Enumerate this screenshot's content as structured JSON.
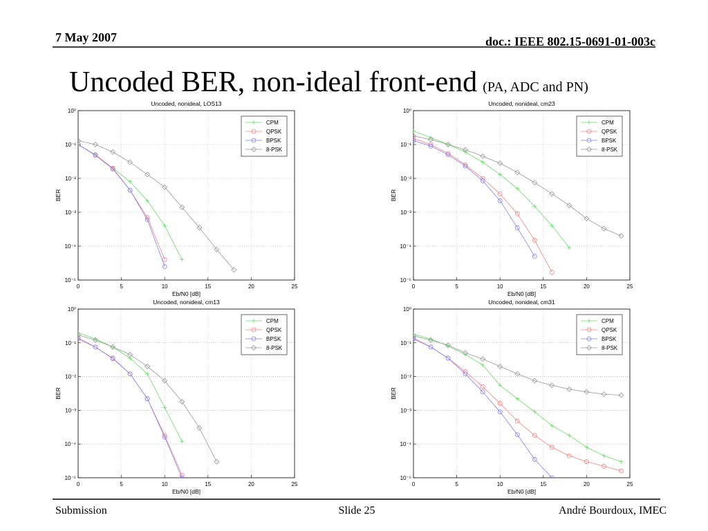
{
  "header": {
    "date": "7 May 2007",
    "doc": "doc.: IEEE 802.15-0691-01-003c"
  },
  "title": "Uncoded BER, non-ideal front-end",
  "subtitle": "(PA, ADC and PN)",
  "footer": {
    "left": "Submission",
    "center": "Slide 25",
    "right": "André Bourdoux, IMEC"
  },
  "chart_data": [
    {
      "type": "line",
      "title": "Uncoded, nonideal, LOS13",
      "xlabel": "Eb/N0 [dB]",
      "ylabel": "BER",
      "x": [
        0,
        2,
        4,
        6,
        8,
        10,
        12,
        14,
        16,
        18,
        20,
        22,
        24
      ],
      "series": [
        {
          "name": "CPM",
          "color": "#66dd66",
          "values": [
            0.1,
            0.05,
            0.02,
            0.008,
            0.0022,
            0.0004,
            4e-05,
            null,
            null,
            null,
            null,
            null,
            null
          ]
        },
        {
          "name": "QPSK",
          "color": "#ff7f7f",
          "values": [
            0.1,
            0.05,
            0.02,
            0.0045,
            0.0007,
            4e-05,
            null,
            null,
            null,
            null,
            null,
            null,
            null
          ]
        },
        {
          "name": "BPSK",
          "color": "#7f7fff",
          "values": [
            0.1,
            0.048,
            0.019,
            0.0045,
            0.0006,
            2.5e-05,
            null,
            null,
            null,
            null,
            null,
            null,
            null
          ]
        },
        {
          "name": "8-PSK",
          "color": "#999999",
          "values": [
            0.13,
            0.1,
            0.06,
            0.03,
            0.013,
            0.0055,
            0.0014,
            0.00035,
            8e-05,
            2e-05,
            null,
            null,
            null
          ]
        }
      ],
      "xlim": [
        0,
        25
      ],
      "xticks": [
        0,
        5,
        10,
        15,
        20,
        25
      ],
      "ylim": [
        1e-05,
        1
      ],
      "log_y": true,
      "grid": true,
      "legend": "upper right",
      "yticks": [
        {
          "value": 1e-05,
          "label": "10⁻⁵"
        },
        {
          "value": 0.0001,
          "label": "10⁻⁴"
        },
        {
          "value": 0.001,
          "label": "10⁻³"
        },
        {
          "value": 0.01,
          "label": "10⁻²"
        },
        {
          "value": 0.1,
          "label": "10⁻¹"
        },
        {
          "value": 1,
          "label": "10⁰"
        }
      ]
    },
    {
      "type": "line",
      "title": "Uncoded, nonideal, cm23",
      "xlabel": "Eb/N0 [dB]",
      "ylabel": "BER",
      "x": [
        0,
        2,
        4,
        6,
        8,
        10,
        12,
        14,
        16,
        18,
        20,
        22,
        24
      ],
      "series": [
        {
          "name": "CPM",
          "color": "#66dd66",
          "values": [
            0.25,
            0.16,
            0.1,
            0.06,
            0.03,
            0.013,
            0.005,
            0.0015,
            0.0004,
            9e-05,
            null,
            null,
            null
          ]
        },
        {
          "name": "QPSK",
          "color": "#ff7f7f",
          "values": [
            0.15,
            0.1,
            0.055,
            0.025,
            0.01,
            0.0035,
            0.0009,
            0.00015,
            1.7e-05,
            null,
            null,
            null,
            null
          ]
        },
        {
          "name": "BPSK",
          "color": "#7f7fff",
          "values": [
            0.13,
            0.09,
            0.05,
            0.023,
            0.0085,
            0.0022,
            0.00035,
            5e-05,
            null,
            null,
            null,
            null,
            null
          ]
        },
        {
          "name": "8-PSK",
          "color": "#999999",
          "values": [
            0.18,
            0.14,
            0.1,
            0.07,
            0.045,
            0.028,
            0.015,
            0.0075,
            0.0035,
            0.0016,
            0.00065,
            0.00033,
            0.0002
          ]
        }
      ],
      "xlim": [
        0,
        25
      ],
      "xticks": [
        0,
        5,
        10,
        15,
        20,
        25
      ],
      "ylim": [
        1e-05,
        1
      ],
      "log_y": true,
      "grid": true,
      "legend": "upper right",
      "yticks": [
        {
          "value": 1e-05,
          "label": "10⁻⁵"
        },
        {
          "value": 0.0001,
          "label": "10⁻⁴"
        },
        {
          "value": 0.001,
          "label": "10⁻³"
        },
        {
          "value": 0.01,
          "label": "10⁻²"
        },
        {
          "value": 0.1,
          "label": "10⁻¹"
        },
        {
          "value": 1,
          "label": "10⁰"
        }
      ]
    },
    {
      "type": "line",
      "title": "Uncoded, nonideal, cm13",
      "xlabel": "Eb/N0 [dB]",
      "ylabel": "BER",
      "x": [
        0,
        2,
        4,
        6,
        8,
        10,
        12,
        14,
        16,
        18,
        20,
        22,
        24
      ],
      "series": [
        {
          "name": "CPM",
          "color": "#66dd66",
          "values": [
            0.2,
            0.13,
            0.075,
            0.035,
            0.012,
            0.0012,
            0.00012,
            null,
            null,
            null,
            null,
            null,
            null
          ]
        },
        {
          "name": "QPSK",
          "color": "#ff7f7f",
          "values": [
            0.14,
            0.075,
            0.035,
            0.012,
            0.0022,
            0.00018,
            1.2e-05,
            null,
            null,
            null,
            null,
            null,
            null
          ]
        },
        {
          "name": "BPSK",
          "color": "#7f7fff",
          "values": [
            0.13,
            0.075,
            0.034,
            0.012,
            0.0022,
            0.00016,
            1e-05,
            null,
            null,
            null,
            null,
            null,
            null
          ]
        },
        {
          "name": "8-PSK",
          "color": "#999999",
          "values": [
            0.17,
            0.12,
            0.075,
            0.045,
            0.02,
            0.0075,
            0.0018,
            0.0003,
            3e-05,
            null,
            null,
            null,
            null
          ]
        }
      ],
      "xlim": [
        0,
        25
      ],
      "xticks": [
        0,
        5,
        10,
        15,
        20,
        25
      ],
      "ylim": [
        1e-05,
        1
      ],
      "log_y": true,
      "grid": true,
      "legend": "upper right",
      "yticks": [
        {
          "value": 1e-05,
          "label": "10⁻⁵"
        },
        {
          "value": 0.0001,
          "label": "10⁻⁴"
        },
        {
          "value": 0.001,
          "label": "10⁻³"
        },
        {
          "value": 0.01,
          "label": "10⁻²"
        },
        {
          "value": 0.1,
          "label": "10⁻¹"
        },
        {
          "value": 1,
          "label": "10⁰"
        }
      ]
    },
    {
      "type": "line",
      "title": "Uncoded, nonideal, cm31",
      "xlabel": "Eb/N0 [dB]",
      "ylabel": "BER",
      "x": [
        0,
        2,
        4,
        6,
        8,
        10,
        12,
        14,
        16,
        18,
        20,
        22,
        24
      ],
      "series": [
        {
          "name": "CPM",
          "color": "#66dd66",
          "values": [
            0.18,
            0.13,
            0.08,
            0.045,
            0.022,
            0.0055,
            0.0022,
            0.0009,
            0.00035,
            0.00018,
            8e-05,
            4.5e-05,
            3e-05
          ]
        },
        {
          "name": "QPSK",
          "color": "#ff7f7f",
          "values": [
            0.14,
            0.075,
            0.035,
            0.014,
            0.005,
            0.0016,
            0.00048,
            0.00018,
            8e-05,
            4.5e-05,
            3e-05,
            2.2e-05,
            1.6e-05
          ]
        },
        {
          "name": "BPSK",
          "color": "#7f7fff",
          "values": [
            0.13,
            0.075,
            0.035,
            0.012,
            0.0035,
            0.0009,
            0.00019,
            3.5e-05,
            1e-05,
            null,
            null,
            null,
            null
          ]
        },
        {
          "name": "8-PSK",
          "color": "#999999",
          "values": [
            0.16,
            0.12,
            0.085,
            0.05,
            0.033,
            0.02,
            0.012,
            0.0075,
            0.0055,
            0.0042,
            0.0035,
            0.003,
            0.0028
          ]
        }
      ],
      "xlim": [
        0,
        25
      ],
      "xticks": [
        0,
        5,
        10,
        15,
        20,
        25
      ],
      "ylim": [
        1e-05,
        1
      ],
      "log_y": true,
      "grid": true,
      "legend": "upper right",
      "yticks": [
        {
          "value": 1e-05,
          "label": "10⁻⁵"
        },
        {
          "value": 0.0001,
          "label": "10⁻⁴"
        },
        {
          "value": 0.001,
          "label": "10⁻³"
        },
        {
          "value": 0.01,
          "label": "10⁻²"
        },
        {
          "value": 0.1,
          "label": "10⁻¹"
        },
        {
          "value": 1,
          "label": "10⁰"
        }
      ]
    }
  ]
}
